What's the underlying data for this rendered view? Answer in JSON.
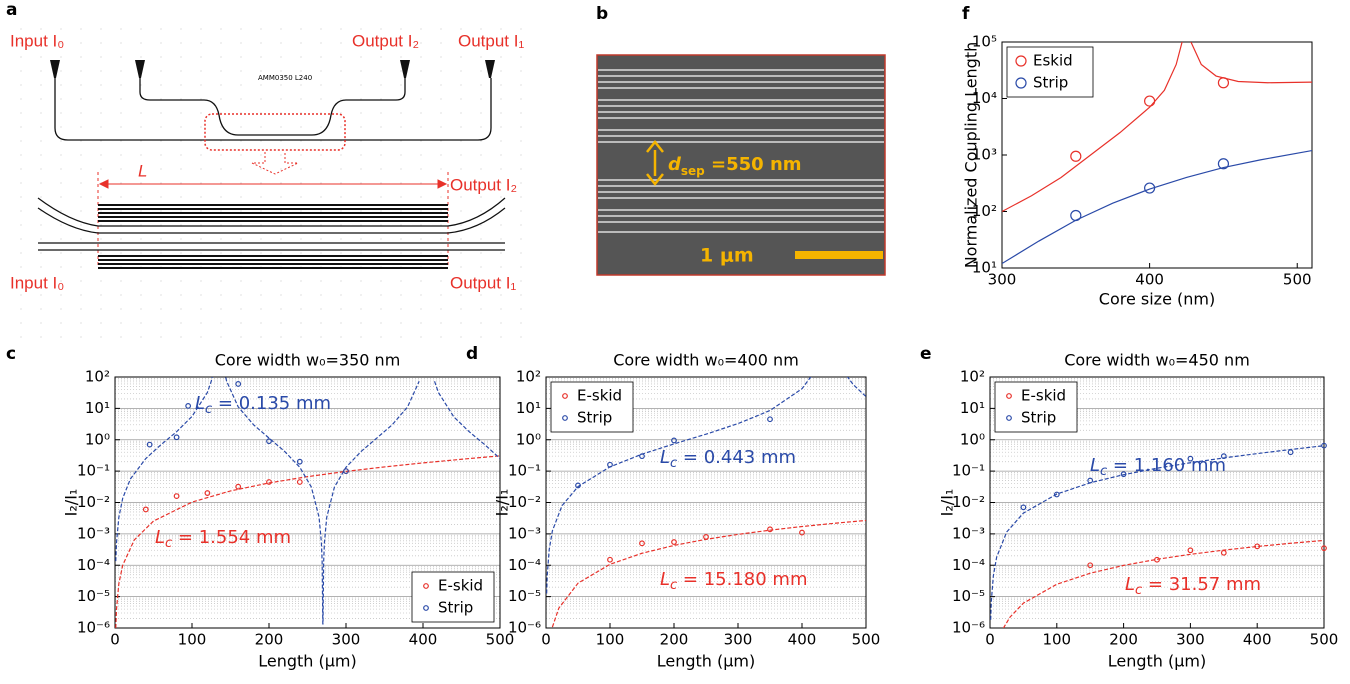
{
  "panels": {
    "a": {
      "label": "a",
      "chip_text": "AMM0350 L240",
      "input_top": "Input I₀",
      "output2_top": "Output I₂",
      "output1_top": "Output I₁",
      "length": "L",
      "output2_bottom": "Output I₂",
      "input_bottom": "Input I₀",
      "output1_bottom": "Output I₁"
    },
    "b": {
      "label": "b",
      "dsep": {
        "symbol": "d",
        "sub": "sep",
        "text": " =550 nm"
      },
      "scale": "1 μm"
    }
  },
  "chart_data": [
    {
      "type": "scatter",
      "label": "f",
      "xlabel": "Core size (nm)",
      "ylabel": "Normalized Coupling Length",
      "xlim": [
        300,
        510
      ],
      "xticks": [
        300,
        400,
        500
      ],
      "ylim": [
        10,
        100000
      ],
      "log_y": true,
      "yticks": [
        {
          "value": 10,
          "label": "10¹"
        },
        {
          "value": 100,
          "label": "10²"
        },
        {
          "value": 1000,
          "label": "10³"
        },
        {
          "value": 10000,
          "label": "10⁴"
        },
        {
          "value": 100000,
          "label": "10⁵"
        }
      ],
      "grid": false,
      "legend": "upper left",
      "fit_style": "solid",
      "marker_size": "large",
      "series": [
        {
          "name": "Eskid",
          "color": "#e8312a",
          "x": [
            350,
            400,
            450
          ],
          "values": [
            950,
            9000,
            19000
          ],
          "fit_x": [
            300,
            320,
            340,
            360,
            380,
            400,
            410,
            418,
            422,
            425,
            428,
            435,
            445,
            460,
            480,
            510
          ],
          "fit_values": [
            100,
            190,
            400,
            1000,
            2500,
            7000,
            14000,
            40000,
            100000,
            null,
            100000,
            40000,
            25000,
            20000,
            19000,
            19500
          ]
        },
        {
          "name": "Strip",
          "color": "#2a4aa8",
          "x": [
            350,
            400,
            450
          ],
          "values": [
            85,
            260,
            700
          ],
          "fit_x": [
            300,
            325,
            350,
            375,
            400,
            425,
            450,
            475,
            510
          ],
          "fit_values": [
            12,
            30,
            70,
            140,
            250,
            400,
            600,
            820,
            1200
          ]
        }
      ],
      "annotations": []
    },
    {
      "type": "scatter",
      "label": "c",
      "title": "Core width w₀=350 nm",
      "xlabel": "Length (μm)",
      "ylabel": "I₂/I₁",
      "xlim": [
        0,
        500
      ],
      "xticks": [
        0,
        100,
        200,
        300,
        400,
        500
      ],
      "ylim": [
        1e-06,
        100
      ],
      "log_y": true,
      "yticks": [
        {
          "value": 1e-06,
          "label": "10⁻⁶"
        },
        {
          "value": 1e-05,
          "label": "10⁻⁵"
        },
        {
          "value": 0.0001,
          "label": "10⁻⁴"
        },
        {
          "value": 0.001,
          "label": "10⁻³"
        },
        {
          "value": 0.01,
          "label": "10⁻²"
        },
        {
          "value": 0.1,
          "label": "10⁻¹"
        },
        {
          "value": 1,
          "label": "10⁰"
        },
        {
          "value": 10,
          "label": "10¹"
        },
        {
          "value": 100,
          "label": "10²"
        }
      ],
      "grid": true,
      "legend": "lower right",
      "fit_style": "dashed",
      "marker_size": "small",
      "series": [
        {
          "name": "E-skid",
          "color": "#e8312a",
          "x": [
            40,
            80,
            120,
            160,
            200,
            240,
            300
          ],
          "values": [
            0.006,
            0.016,
            0.02,
            0.032,
            0.045,
            0.045,
            0.1
          ],
          "fit_x": [
            1,
            2,
            5,
            10,
            25,
            50,
            100,
            150,
            200,
            250,
            300,
            350,
            400,
            450,
            500
          ],
          "fit_values": [
            1e-06,
            4.1e-06,
            2.6e-05,
            0.0001,
            0.00064,
            0.00256,
            0.0103,
            0.02335,
            0.042,
            0.0667,
            0.0979,
            0.1363,
            0.1829,
            0.2391,
            0.3064
          ]
        },
        {
          "name": "Strip",
          "color": "#2a4aa8",
          "x": [
            45,
            80,
            95,
            160,
            200,
            240,
            300
          ],
          "values": [
            0.7,
            1.2,
            12,
            60,
            0.9,
            0.2,
            0.1
          ],
          "fit_x": [
            1,
            2,
            5,
            10,
            20,
            40,
            60,
            80,
            100,
            120,
            125,
            128,
            135,
            142,
            145,
            160,
            180,
            200,
            220,
            240,
            255,
            265,
            268,
            269,
            269.9,
            270.1,
            271,
            272,
            275,
            285,
            300,
            320,
            340,
            360,
            380,
            395,
            405,
            415,
            420,
            440,
            460,
            480,
            500
          ],
          "fit_values": [
            0.000135,
            0.00054,
            0.00339,
            0.01367,
            0.0562,
            0.2524,
            0.7041,
            1.8,
            5.55,
            32.16,
            73.3,
            150,
            null,
            150,
            73.1,
            11.15,
            3.0,
            1.13,
            0.4326,
            0.1325,
            0.0311,
            0.0034,
            0.000541,
            0.0001355,
            1.35e-06,
            1.35e-06,
            0.0001355,
            0.000541,
            0.0034,
            0.0311,
            0.1325,
            0.4326,
            1.13,
            3.0,
            11.15,
            73.1,
            null,
            73,
            32.1,
            5.38,
            1.8,
            0.705,
            0.2522
          ]
        }
      ],
      "annotations": [
        {
          "symbol": "L",
          "sub": "c",
          "text": " = 0.135 mm",
          "color": "#2a4aa8"
        },
        {
          "symbol": "L",
          "sub": "c",
          "text": " = 1.554 mm",
          "color": "#e8312a"
        }
      ]
    },
    {
      "type": "scatter",
      "label": "d",
      "title": "Core width w₀=400 nm",
      "xlabel": "Length (μm)",
      "ylabel": "I₂/I₁",
      "xlim": [
        0,
        500
      ],
      "xticks": [
        0,
        100,
        200,
        300,
        400,
        500
      ],
      "ylim": [
        1e-06,
        100
      ],
      "log_y": true,
      "yticks": [
        {
          "value": 1e-06,
          "label": "10⁻⁶"
        },
        {
          "value": 1e-05,
          "label": "10⁻⁵"
        },
        {
          "value": 0.0001,
          "label": "10⁻⁴"
        },
        {
          "value": 0.001,
          "label": "10⁻³"
        },
        {
          "value": 0.01,
          "label": "10⁻²"
        },
        {
          "value": 0.1,
          "label": "10⁻¹"
        },
        {
          "value": 1,
          "label": "10⁰"
        },
        {
          "value": 10,
          "label": "10¹"
        },
        {
          "value": 100,
          "label": "10²"
        }
      ],
      "grid": true,
      "legend": "upper left",
      "fit_style": "dashed",
      "marker_size": "small",
      "series": [
        {
          "name": "E-skid",
          "color": "#e8312a",
          "x": [
            100,
            150,
            200,
            250,
            350,
            400
          ],
          "values": [
            0.00015,
            0.0005,
            0.00055,
            0.0008,
            0.0014,
            0.0011
          ],
          "fit_x": [
            10,
            20,
            50,
            100,
            150,
            200,
            250,
            300,
            350,
            400,
            450,
            500
          ],
          "fit_values": [
            1.07e-06,
            4.28e-06,
            2.68e-05,
            0.0001071,
            0.000241,
            0.000428,
            0.000669,
            0.000964,
            0.001312,
            0.001714,
            0.00217,
            0.00268
          ]
        },
        {
          "name": "Strip",
          "color": "#2a4aa8",
          "x": [
            50,
            100,
            150,
            200,
            350
          ],
          "values": [
            0.035,
            0.16,
            0.3,
            0.95,
            4.5
          ],
          "fit_x": [
            1,
            2,
            5,
            10,
            25,
            50,
            100,
            150,
            200,
            250,
            300,
            350,
            400,
            420,
            443,
            470,
            480,
            500
          ],
          "fit_values": [
            1.26e-05,
            5e-05,
            0.000314,
            0.001257,
            0.00789,
            0.0321,
            0.137,
            0.3469,
            0.7367,
            1.505,
            3.27,
            8.54,
            42.4,
            150,
            null,
            108,
            57.5,
            23.8
          ]
        }
      ],
      "annotations": [
        {
          "symbol": "L",
          "sub": "c",
          "text": " = 0.443 mm",
          "color": "#2a4aa8"
        },
        {
          "symbol": "L",
          "sub": "c",
          "text": " = 15.180 mm",
          "color": "#e8312a"
        }
      ]
    },
    {
      "type": "scatter",
      "label": "e",
      "title": "Core width w₀=450 nm",
      "xlabel": "Length (μm)",
      "ylabel": "I₂/I₁",
      "xlim": [
        0,
        500
      ],
      "xticks": [
        0,
        100,
        200,
        300,
        400,
        500
      ],
      "ylim": [
        1e-06,
        100
      ],
      "log_y": true,
      "yticks": [
        {
          "value": 1e-06,
          "label": "10⁻⁶"
        },
        {
          "value": 1e-05,
          "label": "10⁻⁵"
        },
        {
          "value": 0.0001,
          "label": "10⁻⁴"
        },
        {
          "value": 0.001,
          "label": "10⁻³"
        },
        {
          "value": 0.01,
          "label": "10⁻²"
        },
        {
          "value": 0.1,
          "label": "10⁻¹"
        },
        {
          "value": 1,
          "label": "10⁰"
        },
        {
          "value": 10,
          "label": "10¹"
        },
        {
          "value": 100,
          "label": "10²"
        }
      ],
      "grid": true,
      "legend": "upper left",
      "fit_style": "dashed",
      "marker_size": "small",
      "series": [
        {
          "name": "E-skid",
          "color": "#e8312a",
          "x": [
            150,
            250,
            300,
            350,
            400,
            500
          ],
          "values": [
            0.0001,
            0.00015,
            0.0003,
            0.00025,
            0.0004,
            0.00035
          ],
          "fit_x": [
            20,
            30,
            50,
            100,
            150,
            200,
            250,
            300,
            350,
            400,
            450,
            500
          ],
          "fit_values": [
            9.9e-07,
            2.23e-06,
            6.19e-06,
            2.48e-05,
            5.57e-05,
            9.9e-05,
            0.0001547,
            0.0002228,
            0.0003033,
            0.0003961,
            0.0005013,
            0.000619
          ]
        },
        {
          "name": "Strip",
          "color": "#2a4aa8",
          "x": [
            50,
            100,
            150,
            200,
            300,
            350,
            450,
            500
          ],
          "values": [
            0.007,
            0.018,
            0.05,
            0.08,
            0.25,
            0.3,
            0.4,
            0.65
          ],
          "fit_x": [
            1,
            2,
            5,
            10,
            25,
            50,
            100,
            150,
            200,
            250,
            300,
            350,
            400,
            450,
            500
          ],
          "fit_values": [
            1.83e-06,
            7.33e-06,
            4.58e-05,
            0.000183,
            0.001146,
            0.00459,
            0.01855,
            0.04244,
            0.0771,
            0.1239,
            0.1851,
            0.2633,
            0.3623,
            0.4879,
            0.6474
          ]
        }
      ],
      "annotations": [
        {
          "symbol": "L",
          "sub": "c",
          "text": " = 1.160 mm",
          "color": "#2a4aa8"
        },
        {
          "symbol": "L",
          "sub": "c",
          "text": " = 31.57 mm",
          "color": "#e8312a"
        }
      ]
    }
  ]
}
